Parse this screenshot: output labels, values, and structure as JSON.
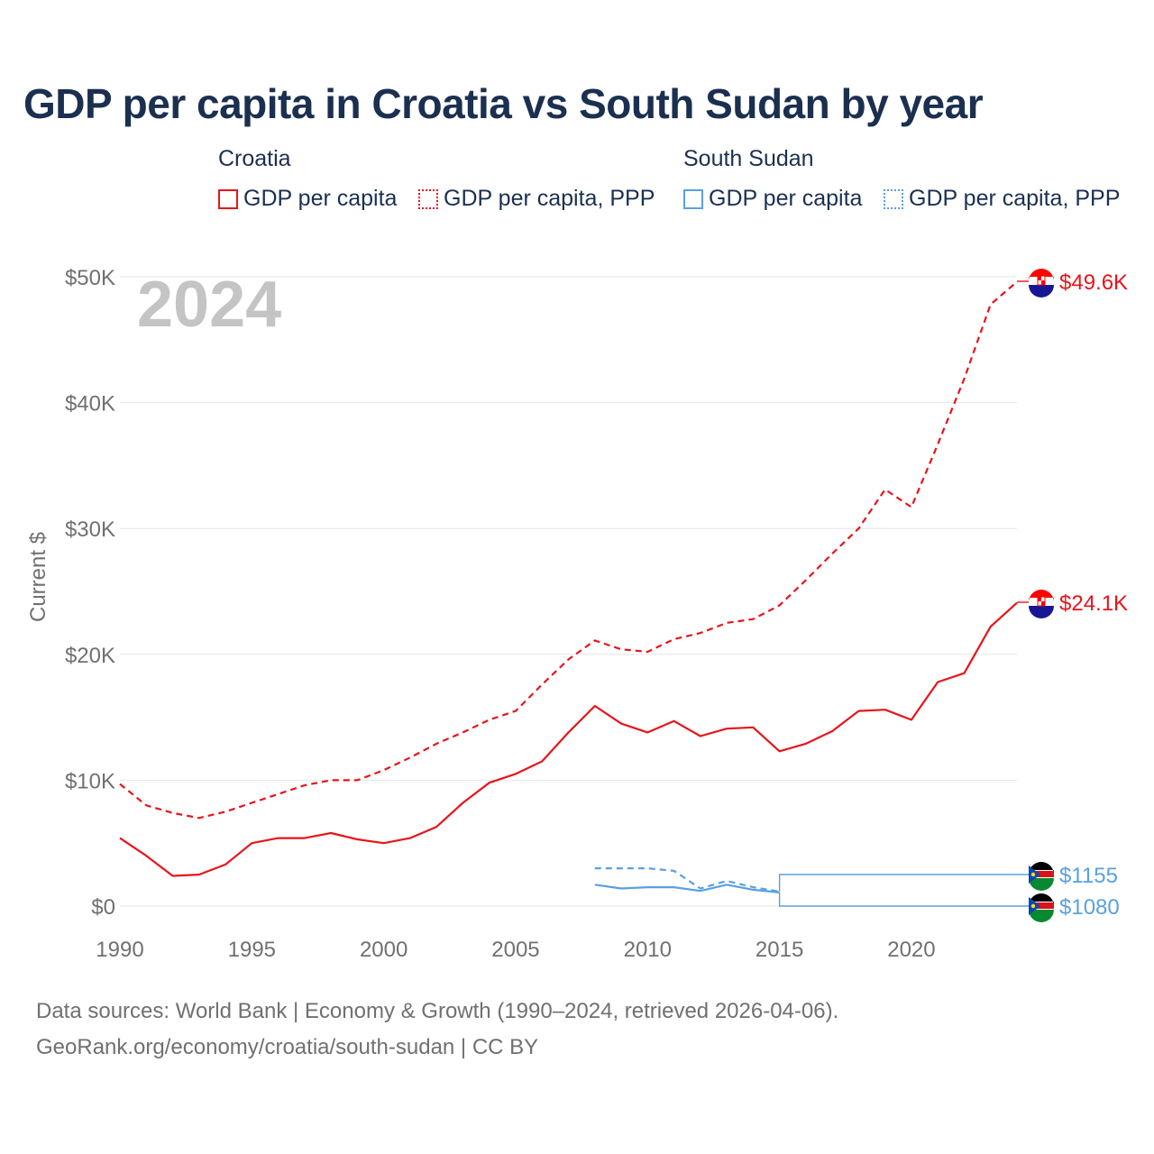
{
  "title": "GDP per capita in Croatia vs South Sudan by year",
  "legend": {
    "groups": [
      {
        "name": "Croatia",
        "color": "#e8141a",
        "items": [
          {
            "label": "GDP per capita",
            "style": "solid"
          },
          {
            "label": "GDP per capita, PPP",
            "style": "dotted"
          }
        ]
      },
      {
        "name": "South Sudan",
        "color": "#5aa0e0",
        "items": [
          {
            "label": "GDP per capita",
            "style": "solid"
          },
          {
            "label": "GDP per capita, PPP",
            "style": "dotted"
          }
        ]
      }
    ]
  },
  "chart_data": {
    "type": "line",
    "title": "GDP per capita in Croatia vs South Sudan by year",
    "ylabel": "Current $",
    "xlabel": "",
    "year_label": "2024",
    "xlim": [
      1990,
      2024
    ],
    "ylim": [
      0,
      50000
    ],
    "x_ticks": [
      1990,
      1995,
      2000,
      2005,
      2010,
      2015,
      2020
    ],
    "y_ticks": [
      {
        "value": 0,
        "label": "$0"
      },
      {
        "value": 10000,
        "label": "$10K"
      },
      {
        "value": 20000,
        "label": "$20K"
      },
      {
        "value": 30000,
        "label": "$30K"
      },
      {
        "value": 40000,
        "label": "$40K"
      },
      {
        "value": 50000,
        "label": "$50K"
      }
    ],
    "grid": true,
    "series": [
      {
        "name": "Croatia GDP per capita, PPP",
        "country": "Croatia",
        "dash": "dashed",
        "color": "#e8141a",
        "end_label": "$49.6K",
        "points": [
          [
            1990,
            9700
          ],
          [
            1991,
            8000
          ],
          [
            1992,
            7400
          ],
          [
            1993,
            7000
          ],
          [
            1994,
            7500
          ],
          [
            1995,
            8200
          ],
          [
            1996,
            8900
          ],
          [
            1997,
            9600
          ],
          [
            1998,
            10000
          ],
          [
            1999,
            10000
          ],
          [
            2000,
            10800
          ],
          [
            2001,
            11800
          ],
          [
            2002,
            12900
          ],
          [
            2003,
            13800
          ],
          [
            2004,
            14800
          ],
          [
            2005,
            15500
          ],
          [
            2006,
            17600
          ],
          [
            2007,
            19600
          ],
          [
            2008,
            21100
          ],
          [
            2009,
            20400
          ],
          [
            2010,
            20200
          ],
          [
            2011,
            21200
          ],
          [
            2012,
            21700
          ],
          [
            2013,
            22500
          ],
          [
            2014,
            22800
          ],
          [
            2015,
            23900
          ],
          [
            2016,
            25900
          ],
          [
            2017,
            28000
          ],
          [
            2018,
            30000
          ],
          [
            2019,
            33100
          ],
          [
            2020,
            31700
          ],
          [
            2021,
            36700
          ],
          [
            2022,
            41900
          ],
          [
            2023,
            47800
          ],
          [
            2024,
            49600
          ]
        ]
      },
      {
        "name": "Croatia GDP per capita",
        "country": "Croatia",
        "dash": "solid",
        "color": "#e8141a",
        "end_label": "$24.1K",
        "points": [
          [
            1990,
            5400
          ],
          [
            1991,
            4000
          ],
          [
            1992,
            2400
          ],
          [
            1993,
            2500
          ],
          [
            1994,
            3300
          ],
          [
            1995,
            5000
          ],
          [
            1996,
            5400
          ],
          [
            1997,
            5400
          ],
          [
            1998,
            5800
          ],
          [
            1999,
            5300
          ],
          [
            2000,
            5000
          ],
          [
            2001,
            5400
          ],
          [
            2002,
            6300
          ],
          [
            2003,
            8200
          ],
          [
            2004,
            9800
          ],
          [
            2005,
            10500
          ],
          [
            2006,
            11500
          ],
          [
            2007,
            13800
          ],
          [
            2008,
            15900
          ],
          [
            2009,
            14500
          ],
          [
            2010,
            13800
          ],
          [
            2011,
            14700
          ],
          [
            2012,
            13500
          ],
          [
            2013,
            14100
          ],
          [
            2014,
            14200
          ],
          [
            2015,
            12300
          ],
          [
            2016,
            12900
          ],
          [
            2017,
            13900
          ],
          [
            2018,
            15500
          ],
          [
            2019,
            15600
          ],
          [
            2020,
            14800
          ],
          [
            2021,
            17800
          ],
          [
            2022,
            18500
          ],
          [
            2023,
            22200
          ],
          [
            2024,
            24100
          ]
        ]
      },
      {
        "name": "South Sudan GDP per capita, PPP",
        "country": "South Sudan",
        "dash": "dashed",
        "color": "#5aa0e0",
        "end_label": "$1155",
        "points": [
          [
            2008,
            3000
          ],
          [
            2009,
            3000
          ],
          [
            2010,
            3000
          ],
          [
            2011,
            2800
          ],
          [
            2012,
            1400
          ],
          [
            2013,
            2000
          ],
          [
            2014,
            1500
          ],
          [
            2015,
            1155
          ]
        ]
      },
      {
        "name": "South Sudan GDP per capita",
        "country": "South Sudan",
        "dash": "solid",
        "color": "#5aa0e0",
        "end_label": "$1080",
        "points": [
          [
            2008,
            1700
          ],
          [
            2009,
            1400
          ],
          [
            2010,
            1500
          ],
          [
            2011,
            1500
          ],
          [
            2012,
            1200
          ],
          [
            2013,
            1700
          ],
          [
            2014,
            1300
          ],
          [
            2015,
            1080
          ]
        ]
      }
    ]
  },
  "footer": {
    "line1": "Data sources: World Bank | Economy & Growth (1990–2024, retrieved 2026-04-06).",
    "line2": "GeoRank.org/economy/croatia/south-sudan | CC BY"
  }
}
